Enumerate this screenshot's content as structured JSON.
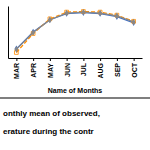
{
  "chart_data": {
    "type": "line",
    "categories": [
      "MAR",
      "APR",
      "MAY",
      "JUN",
      "JUL",
      "AUG",
      "SEP",
      "OCT"
    ],
    "series": [
      {
        "color": "#4472C4",
        "marker": "diamond",
        "line_style": "solid",
        "values": [
          15.0,
          20.5,
          24.5,
          26.5,
          26.8,
          26.5,
          25.5,
          23.5
        ]
      },
      {
        "color": "#FF8C00",
        "marker": "square",
        "line_style": "dashed",
        "values": [
          13.8,
          20.0,
          24.8,
          27.0,
          27.2,
          27.0,
          26.0,
          24.0
        ]
      },
      {
        "color": "#888888",
        "marker": "diamond",
        "line_style": "solid",
        "values": [
          14.8,
          20.3,
          24.4,
          26.7,
          27.0,
          26.7,
          25.8,
          23.8
        ]
      }
    ],
    "x_label": "Name of Months",
    "ylim": [
      12,
      29
    ],
    "tick_labels": "x",
    "grid": false,
    "annotations": [
      "onthly mean of observed,",
      "erature during the contr"
    ]
  }
}
